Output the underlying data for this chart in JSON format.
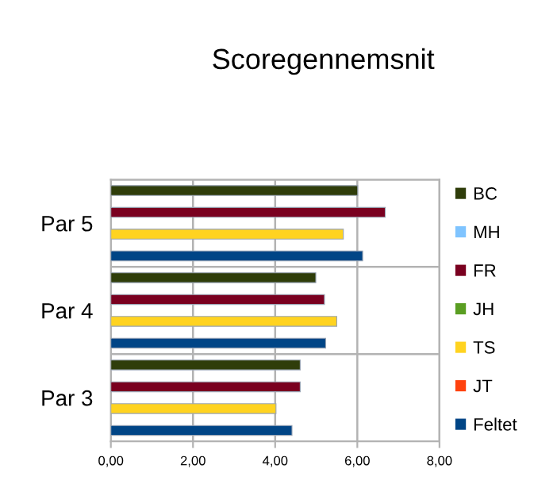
{
  "chart_data": {
    "type": "bar",
    "orientation": "horizontal",
    "title": "Scoregennemsnit",
    "categories": [
      "Par 5",
      "Par 4",
      "Par 3"
    ],
    "series": [
      {
        "name": "BC",
        "color": "#2f3d0a",
        "values": [
          6.01,
          4.99,
          4.61
        ]
      },
      {
        "name": "MH",
        "color": "#7fc4ff",
        "values": [
          null,
          null,
          null
        ]
      },
      {
        "name": "FR",
        "color": "#7a0020",
        "values": [
          6.68,
          5.2,
          4.61
        ]
      },
      {
        "name": "JH",
        "color": "#5a9e22",
        "values": [
          null,
          null,
          null
        ]
      },
      {
        "name": "TS",
        "color": "#ffd320",
        "values": [
          5.66,
          5.5,
          4.02
        ]
      },
      {
        "name": "JT",
        "color": "#ff420e",
        "values": [
          null,
          null,
          null
        ]
      },
      {
        "name": "Feltet",
        "color": "#004586",
        "values": [
          6.13,
          5.23,
          4.41
        ]
      }
    ],
    "xlim": [
      0,
      8
    ],
    "xticks": [
      {
        "value": 0,
        "label": "0,00"
      },
      {
        "value": 2,
        "label": "2,00"
      },
      {
        "value": 4,
        "label": "4,00"
      },
      {
        "value": 6,
        "label": "6,00"
      },
      {
        "value": 8,
        "label": "8,00"
      }
    ],
    "grid": true,
    "legend": "right"
  }
}
